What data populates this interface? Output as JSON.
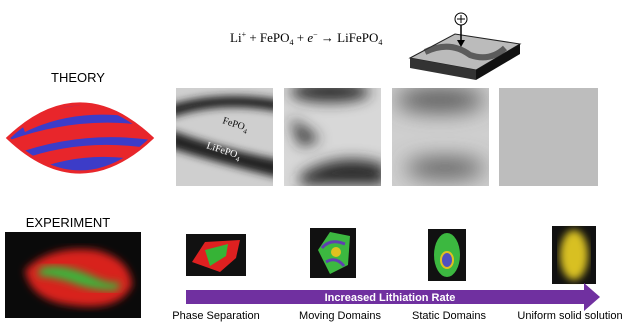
{
  "equation": {
    "parts": [
      "Li",
      "+",
      " + FePO",
      "4",
      " + ",
      "e",
      "−",
      " → LiFePO",
      "4"
    ]
  },
  "theory": {
    "label": "THEORY",
    "fepo4": [
      "FePO",
      "4"
    ],
    "lifepo4": [
      "LiFePO",
      "4"
    ]
  },
  "experiment": {
    "label": "EXPERIMENT"
  },
  "arrow": {
    "label": "Increased Lithiation Rate"
  },
  "stages": [
    "Phase Separation",
    "Moving Domains",
    "Static Domains",
    "Uniform solid solution"
  ]
}
